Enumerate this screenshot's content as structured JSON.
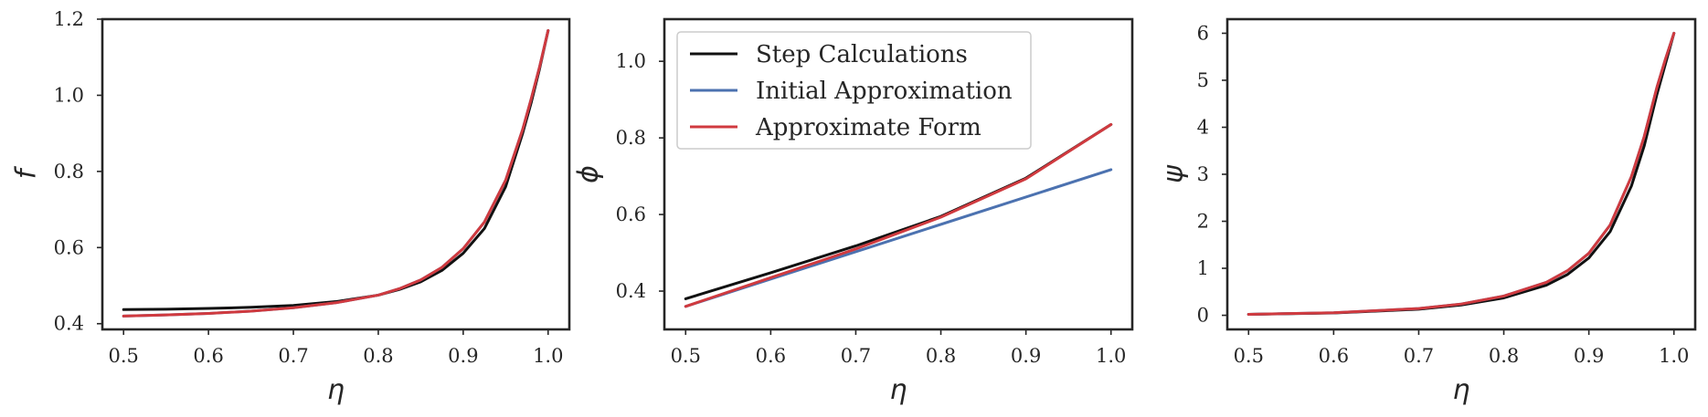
{
  "chart_data": [
    {
      "type": "line",
      "xlabel": "η",
      "ylabel": "f",
      "xlim": [
        0.475,
        1.025
      ],
      "ylim": [
        0.385,
        1.2
      ],
      "xticks": [
        "0.5",
        "0.6",
        "0.7",
        "0.8",
        "0.9",
        "1.0"
      ],
      "yticks": [
        "0.4",
        "0.6",
        "0.8",
        "1.0",
        "1.2"
      ],
      "grid": false,
      "series": [
        {
          "name": "Step Calculations",
          "color": "#111111",
          "x": [
            0.5,
            0.55,
            0.6,
            0.65,
            0.7,
            0.75,
            0.8,
            0.825,
            0.85,
            0.875,
            0.9,
            0.925,
            0.95,
            0.97,
            0.98,
            0.99,
            1.0
          ],
          "y": [
            0.437,
            0.438,
            0.44,
            0.443,
            0.448,
            0.458,
            0.475,
            0.49,
            0.51,
            0.54,
            0.585,
            0.65,
            0.76,
            0.9,
            0.98,
            1.07,
            1.17
          ]
        },
        {
          "name": "Initial Approximation",
          "color": "#4c72b0",
          "x": [
            0.5,
            0.55,
            0.6,
            0.65,
            0.7,
            0.75,
            0.8,
            0.825,
            0.85,
            0.875,
            0.9,
            0.925,
            0.95,
            0.97,
            0.98,
            0.99,
            1.0
          ],
          "y": [
            0.42,
            0.423,
            0.427,
            0.433,
            0.442,
            0.455,
            0.475,
            0.492,
            0.515,
            0.548,
            0.597,
            0.667,
            0.777,
            0.91,
            0.99,
            1.075,
            1.17
          ]
        },
        {
          "name": "Approximate Form",
          "color": "#d03a3f",
          "x": [
            0.5,
            0.55,
            0.6,
            0.65,
            0.7,
            0.75,
            0.8,
            0.825,
            0.85,
            0.875,
            0.9,
            0.925,
            0.95,
            0.97,
            0.98,
            0.99,
            1.0
          ],
          "y": [
            0.42,
            0.423,
            0.427,
            0.433,
            0.442,
            0.455,
            0.475,
            0.492,
            0.515,
            0.548,
            0.597,
            0.667,
            0.777,
            0.91,
            0.99,
            1.075,
            1.17
          ]
        }
      ]
    },
    {
      "type": "line",
      "xlabel": "η",
      "ylabel": "ϕ",
      "xlim": [
        0.475,
        1.025
      ],
      "ylim": [
        0.3,
        1.11
      ],
      "xticks": [
        "0.5",
        "0.6",
        "0.7",
        "0.8",
        "0.9",
        "1.0"
      ],
      "yticks": [
        "0.4",
        "0.6",
        "0.8",
        "1.0"
      ],
      "grid": false,
      "legend": {
        "loc": "upper-left"
      },
      "series": [
        {
          "name": "Step Calculations",
          "color": "#111111",
          "x": [
            0.5,
            0.6,
            0.7,
            0.8,
            0.9,
            1.0
          ],
          "y": [
            0.38,
            0.448,
            0.518,
            0.595,
            0.695,
            0.835
          ]
        },
        {
          "name": "Initial Approximation",
          "color": "#4c72b0",
          "x": [
            0.5,
            1.0
          ],
          "y": [
            0.36,
            0.717
          ]
        },
        {
          "name": "Approximate Form",
          "color": "#d03a3f",
          "x": [
            0.5,
            0.6,
            0.7,
            0.8,
            0.9,
            1.0
          ],
          "y": [
            0.36,
            0.435,
            0.51,
            0.593,
            0.693,
            0.835
          ]
        }
      ]
    },
    {
      "type": "line",
      "xlabel": "η",
      "ylabel": "ψ",
      "xlim": [
        0.475,
        1.025
      ],
      "ylim": [
        -0.3,
        6.3
      ],
      "xticks": [
        "0.5",
        "0.6",
        "0.7",
        "0.8",
        "0.9",
        "1.0"
      ],
      "yticks": [
        "0",
        "1",
        "2",
        "3",
        "4",
        "5",
        "6"
      ],
      "grid": false,
      "series": [
        {
          "name": "Step Calculations",
          "color": "#111111",
          "x": [
            0.5,
            0.6,
            0.7,
            0.75,
            0.8,
            0.85,
            0.875,
            0.9,
            0.925,
            0.95,
            0.965,
            0.98,
            0.99,
            1.0
          ],
          "y": [
            0.02,
            0.05,
            0.13,
            0.22,
            0.37,
            0.64,
            0.87,
            1.22,
            1.78,
            2.75,
            3.6,
            4.7,
            5.35,
            6.0
          ]
        },
        {
          "name": "Initial Approximation",
          "color": "#4c72b0",
          "x": [
            0.5,
            0.6,
            0.7,
            0.75,
            0.8,
            0.85,
            0.875,
            0.9,
            0.925,
            0.95,
            0.965,
            0.98,
            0.99,
            1.0
          ],
          "y": [
            0.02,
            0.055,
            0.145,
            0.24,
            0.41,
            0.7,
            0.95,
            1.32,
            1.92,
            2.95,
            3.8,
            4.85,
            5.45,
            6.0
          ]
        },
        {
          "name": "Approximate Form",
          "color": "#d03a3f",
          "x": [
            0.5,
            0.6,
            0.7,
            0.75,
            0.8,
            0.85,
            0.875,
            0.9,
            0.925,
            0.95,
            0.965,
            0.98,
            0.99,
            1.0
          ],
          "y": [
            0.02,
            0.055,
            0.145,
            0.24,
            0.41,
            0.7,
            0.95,
            1.32,
            1.92,
            2.95,
            3.8,
            4.85,
            5.45,
            6.0
          ]
        }
      ]
    }
  ]
}
